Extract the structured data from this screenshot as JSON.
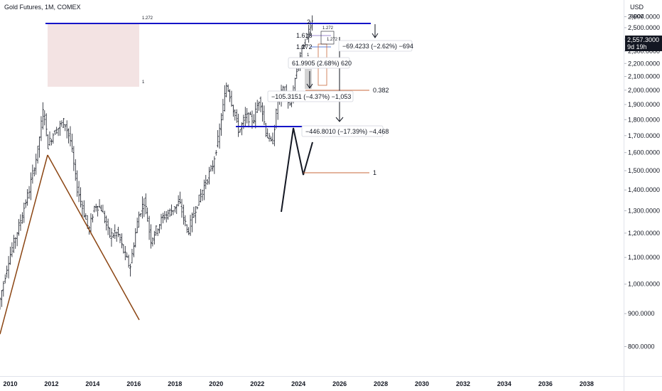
{
  "header": {
    "title": "Gold Futures, 1M, COMEX",
    "currency": "USD",
    "alias": "apoz"
  },
  "price_tag": {
    "price": "2,557.3000",
    "countdown": "9d 19h"
  },
  "colors": {
    "up": "#131722",
    "trend_brown": "#8b4513",
    "level_blue": "#1515c8",
    "fib_orange": "#c96a3c",
    "fib_blue": "#5b7fd8",
    "fib_purple": "#9c8bd0",
    "zone_fill": "#f0dcdc"
  },
  "chart_data": {
    "type": "candlestick",
    "title": "Gold Futures, 1M, COMEX",
    "x_range": [
      2009.5,
      2039.8
    ],
    "y_range": [
      720,
      2760
    ],
    "y_scale": "log",
    "x_ticks": [
      "2010",
      "2012",
      "2014",
      "2016",
      "2018",
      "2020",
      "2022",
      "2024",
      "2026",
      "2028",
      "2030",
      "2032",
      "2034",
      "2036",
      "2038"
    ],
    "y_ticks": [
      "800.0000",
      "900.0000",
      "1,000.0000",
      "1,100.0000",
      "1,200.0000",
      "1,300.0000",
      "1,400.0000",
      "1,500.0000",
      "1,600.0000",
      "1,700.0000",
      "1,800.0000",
      "1,900.0000",
      "2,000.0000",
      "2,100.0000",
      "2,200.0000",
      "2,300.0000",
      "2,400.0000",
      "2,500.0000",
      "2,600.0000"
    ],
    "price_path": [
      [
        2009.5,
        920
      ],
      [
        2010.0,
        1090
      ],
      [
        2010.5,
        1230
      ],
      [
        2011.0,
        1400
      ],
      [
        2011.4,
        1600
      ],
      [
        2011.7,
        1880
      ],
      [
        2011.9,
        1640
      ],
      [
        2012.2,
        1720
      ],
      [
        2012.7,
        1790
      ],
      [
        2013.0,
        1670
      ],
      [
        2013.3,
        1420
      ],
      [
        2013.6,
        1310
      ],
      [
        2013.9,
        1210
      ],
      [
        2014.2,
        1330
      ],
      [
        2014.5,
        1310
      ],
      [
        2014.9,
        1190
      ],
      [
        2015.3,
        1200
      ],
      [
        2015.6,
        1120
      ],
      [
        2015.9,
        1060
      ],
      [
        2016.3,
        1270
      ],
      [
        2016.6,
        1350
      ],
      [
        2016.9,
        1170
      ],
      [
        2017.5,
        1270
      ],
      [
        2017.9,
        1300
      ],
      [
        2018.3,
        1340
      ],
      [
        2018.7,
        1200
      ],
      [
        2019.0,
        1290
      ],
      [
        2019.5,
        1420
      ],
      [
        2019.9,
        1520
      ],
      [
        2020.2,
        1690
      ],
      [
        2020.6,
        2050
      ],
      [
        2020.9,
        1880
      ],
      [
        2021.2,
        1720
      ],
      [
        2021.5,
        1820
      ],
      [
        2021.9,
        1800
      ],
      [
        2022.2,
        1950
      ],
      [
        2022.5,
        1720
      ],
      [
        2022.8,
        1640
      ],
      [
        2023.1,
        1940
      ],
      [
        2023.4,
        2010
      ],
      [
        2023.7,
        1870
      ],
      [
        2023.9,
        2070
      ],
      [
        2024.2,
        2290
      ],
      [
        2024.5,
        2420
      ],
      [
        2024.7,
        2557
      ]
    ],
    "annotations": {
      "fib_high": "1.272",
      "fib_zone_low": "1",
      "level_2": "2",
      "fib_1618": "1.618",
      "fib_1272a": "1.272",
      "fib_1272b": "1.272",
      "fib_1272c": "1.272",
      "fib_one_small": "1",
      "fib_0382": "0.382",
      "fib_1": "1",
      "m1_label": "−69.4233 (−2.62%) −694",
      "m2_label": "61.9905 (2.68%) 620",
      "m3_label": "−105.3151 (−4.37%) −1,053",
      "m4_label": "−446.8010 (−17.39%) −4,468"
    }
  }
}
